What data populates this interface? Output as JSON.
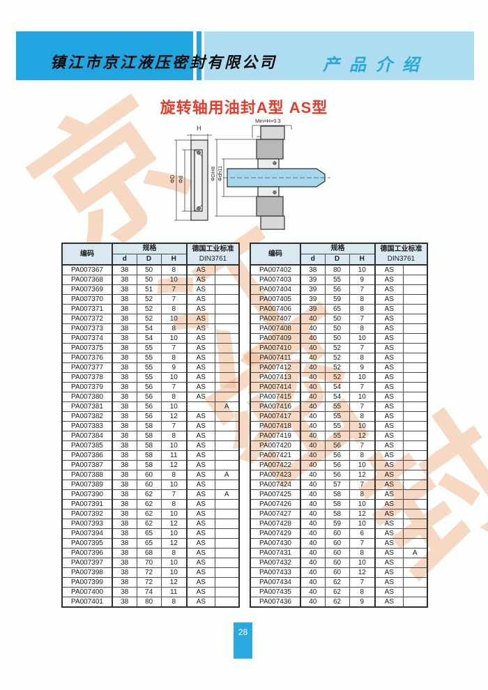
{
  "header": {
    "company": "镇江市京江液压密封有限公司",
    "section_title": "产品介绍"
  },
  "page_title": "旋转轴用油封A型  AS型",
  "diagram": {
    "min_label": "Min=H+0.3",
    "h_label": "H",
    "phi_D": "ΦD",
    "phi_d": "Φd",
    "phi_DH8": "ΦDH8",
    "phi_dh11": "Φdh11"
  },
  "table_headers": {
    "code": "编码",
    "spec": "规格",
    "d": "d",
    "D": "D",
    "H": "H",
    "din_line1": "德国工业标准",
    "din_line2": "DIN3761"
  },
  "tables": {
    "left": {
      "rows": [
        [
          "PA007367",
          38,
          50,
          8,
          "AS",
          ""
        ],
        [
          "PA007368",
          38,
          50,
          10,
          "AS",
          ""
        ],
        [
          "PA007369",
          38,
          51,
          7,
          "AS",
          ""
        ],
        [
          "PA007370",
          38,
          52,
          7,
          "AS",
          ""
        ],
        [
          "PA007371",
          38,
          52,
          8,
          "AS",
          ""
        ],
        [
          "PA007372",
          38,
          52,
          10,
          "AS",
          ""
        ],
        [
          "PA007373",
          38,
          54,
          8,
          "AS",
          ""
        ],
        [
          "PA007374",
          38,
          54,
          10,
          "AS",
          ""
        ],
        [
          "PA007375",
          38,
          55,
          7,
          "AS",
          ""
        ],
        [
          "PA007376",
          38,
          55,
          8,
          "AS",
          ""
        ],
        [
          "PA007377",
          38,
          55,
          9,
          "AS",
          ""
        ],
        [
          "PA007378",
          38,
          55,
          10,
          "AS",
          ""
        ],
        [
          "PA007379",
          38,
          56,
          7,
          "AS",
          ""
        ],
        [
          "PA007380",
          38,
          56,
          8,
          "AS",
          ""
        ],
        [
          "PA007381",
          38,
          56,
          10,
          "",
          "A"
        ],
        [
          "PA007382",
          38,
          56,
          12,
          "AS",
          ""
        ],
        [
          "PA007383",
          38,
          58,
          7,
          "AS",
          ""
        ],
        [
          "PA007384",
          38,
          58,
          8,
          "AS",
          ""
        ],
        [
          "PA007385",
          38,
          58,
          10,
          "AS",
          ""
        ],
        [
          "PA007386",
          38,
          58,
          11,
          "AS",
          ""
        ],
        [
          "PA007387",
          38,
          58,
          12,
          "AS",
          ""
        ],
        [
          "PA007388",
          38,
          60,
          8,
          "AS",
          "A"
        ],
        [
          "PA007389",
          38,
          60,
          10,
          "AS",
          ""
        ],
        [
          "PA007390",
          38,
          62,
          7,
          "AS",
          "A"
        ],
        [
          "PA007391",
          38,
          62,
          8,
          "AS",
          ""
        ],
        [
          "PA007392",
          38,
          62,
          10,
          "AS",
          ""
        ],
        [
          "PA007393",
          38,
          62,
          12,
          "AS",
          ""
        ],
        [
          "PA007394",
          38,
          65,
          10,
          "AS",
          ""
        ],
        [
          "PA007395",
          38,
          65,
          12,
          "AS",
          ""
        ],
        [
          "PA007396",
          38,
          68,
          8,
          "AS",
          ""
        ],
        [
          "PA007397",
          38,
          70,
          10,
          "AS",
          ""
        ],
        [
          "PA007398",
          38,
          72,
          10,
          "AS",
          ""
        ],
        [
          "PA007399",
          38,
          72,
          12,
          "AS",
          ""
        ],
        [
          "PA007400",
          38,
          74,
          11,
          "AS",
          ""
        ],
        [
          "PA007401",
          38,
          80,
          8,
          "AS",
          ""
        ]
      ]
    },
    "right": {
      "rows": [
        [
          "PA007402",
          38,
          80,
          10,
          "AS",
          ""
        ],
        [
          "PA007403",
          39,
          55,
          9,
          "AS",
          ""
        ],
        [
          "PA007404",
          39,
          56,
          7,
          "AS",
          ""
        ],
        [
          "PA007405",
          39,
          59,
          8,
          "AS",
          ""
        ],
        [
          "PA007406",
          39,
          65,
          8,
          "AS",
          ""
        ],
        [
          "PA007407",
          40,
          50,
          7,
          "AS",
          ""
        ],
        [
          "PA007408",
          40,
          50,
          8,
          "AS",
          ""
        ],
        [
          "PA007409",
          40,
          50,
          10,
          "AS",
          ""
        ],
        [
          "PA007410",
          40,
          52,
          7,
          "AS",
          ""
        ],
        [
          "PA007411",
          40,
          52,
          8,
          "AS",
          ""
        ],
        [
          "PA007412",
          40,
          52,
          9,
          "AS",
          ""
        ],
        [
          "PA007413",
          40,
          52,
          10,
          "AS",
          ""
        ],
        [
          "PA007414",
          40,
          54,
          7,
          "AS",
          ""
        ],
        [
          "PA007415",
          40,
          54,
          10,
          "AS",
          ""
        ],
        [
          "PA007416",
          40,
          55,
          7,
          "AS",
          ""
        ],
        [
          "PA007417",
          40,
          55,
          8,
          "AS",
          ""
        ],
        [
          "PA007418",
          40,
          55,
          10,
          "AS",
          ""
        ],
        [
          "PA007419",
          40,
          55,
          12,
          "AS",
          ""
        ],
        [
          "PA007420",
          40,
          56,
          7,
          "AS",
          ""
        ],
        [
          "PA007421",
          40,
          56,
          8,
          "AS",
          ""
        ],
        [
          "PA007422",
          40,
          56,
          10,
          "AS",
          ""
        ],
        [
          "PA007423",
          40,
          56,
          12,
          "AS",
          ""
        ],
        [
          "PA007424",
          40,
          57,
          7,
          "AS",
          ""
        ],
        [
          "PA007425",
          40,
          58,
          8,
          "AS",
          ""
        ],
        [
          "PA007426",
          40,
          58,
          10,
          "AS",
          ""
        ],
        [
          "PA007427",
          40,
          58,
          12,
          "AS",
          ""
        ],
        [
          "PA007428",
          40,
          59,
          10,
          "AS",
          ""
        ],
        [
          "PA007429",
          40,
          60,
          6,
          "AS",
          ""
        ],
        [
          "PA007430",
          40,
          60,
          7,
          "AS",
          ""
        ],
        [
          "PA007431",
          40,
          60,
          8,
          "AS",
          "A"
        ],
        [
          "PA007432",
          40,
          60,
          10,
          "AS",
          ""
        ],
        [
          "PA007433",
          40,
          60,
          12,
          "AS",
          ""
        ],
        [
          "PA007434",
          40,
          62,
          7,
          "AS",
          ""
        ],
        [
          "PA007435",
          40,
          62,
          8,
          "AS",
          ""
        ],
        [
          "PA007436",
          40,
          62,
          9,
          "AS",
          ""
        ]
      ]
    }
  },
  "watermark": {
    "chars": [
      "京",
      "江",
      "密",
      "封"
    ]
  },
  "footer": {
    "page_number": "28"
  },
  "colors": {
    "band_dark": "#1fa6e0",
    "band_light": "#aedcf1",
    "section_text": "#2aa7dc",
    "title_red": "#e43b2a",
    "shaft_blue": "#a7d7ee",
    "page_box": "#2aa9e0",
    "watermark": "#f3b98f"
  }
}
